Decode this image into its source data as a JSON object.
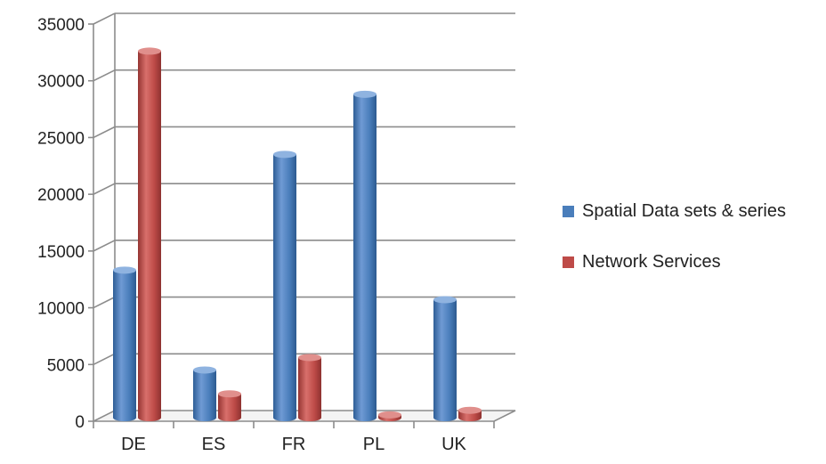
{
  "chart_data": {
    "type": "bar",
    "categories": [
      "DE",
      "ES",
      "FR",
      "PL",
      "UK"
    ],
    "series": [
      {
        "name": "Spatial Data sets & series",
        "values": [
          13000,
          4200,
          23200,
          28500,
          10400
        ],
        "color": "#4a7ebb"
      },
      {
        "name": "Network Services",
        "values": [
          32300,
          2100,
          5300,
          250,
          650
        ],
        "color": "#be4b48"
      }
    ],
    "y_ticks": [
      "0",
      "5000",
      "10000",
      "15000",
      "20000",
      "25000",
      "30000",
      "35000"
    ],
    "ylim": [
      0,
      35000
    ],
    "grid": true,
    "legend_position": "right"
  }
}
